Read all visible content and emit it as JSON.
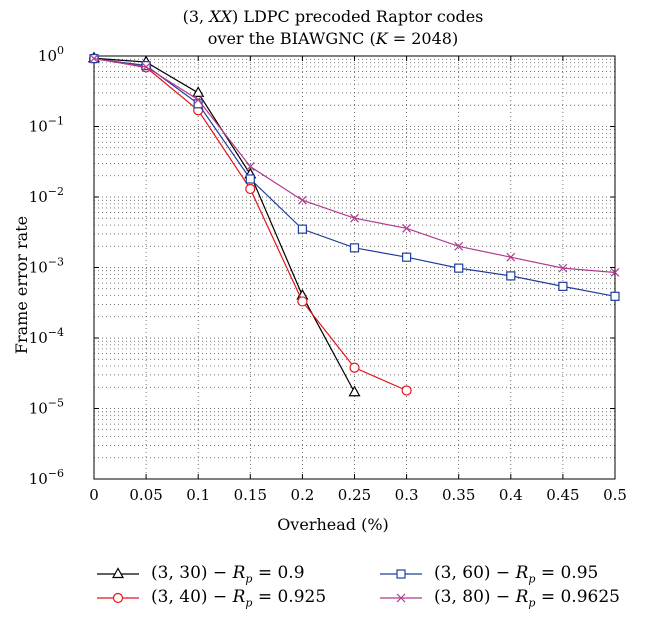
{
  "chart_data": {
    "type": "line",
    "title_line1": "(3, XX) LDPC precoded Raptor codes",
    "title_line2": "over the BIAWGNC (K = 2048)",
    "xlabel": "Overhead (%)",
    "ylabel": "Frame error rate",
    "y_scale": "log",
    "xlim": [
      0,
      0.5
    ],
    "ylim": [
      1e-06,
      1
    ],
    "grid": true,
    "legend_position": "bottom",
    "x_ticks": [
      "0",
      "0.05",
      "0.1",
      "0.15",
      "0.2",
      "0.25",
      "0.3",
      "0.35",
      "0.4",
      "0.45",
      "0.5"
    ],
    "y_ticks": [
      {
        "base": "10",
        "exp": "0"
      },
      {
        "base": "10",
        "exp": "−1"
      },
      {
        "base": "10",
        "exp": "−2"
      },
      {
        "base": "10",
        "exp": "−3"
      },
      {
        "base": "10",
        "exp": "−4"
      },
      {
        "base": "10",
        "exp": "−5"
      },
      {
        "base": "10",
        "exp": "−6"
      }
    ],
    "series": [
      {
        "name": "(3, 30) − Rp = 0.9",
        "code": "(3, 30)",
        "rp": "0.9",
        "color": "#000000",
        "marker": "triangle",
        "x": [
          0,
          0.05,
          0.1,
          0.15,
          0.2,
          0.25
        ],
        "y": [
          0.93,
          0.82,
          0.3,
          0.021,
          0.0004,
          1.7e-05
        ]
      },
      {
        "name": "(3, 40) − Rp = 0.925",
        "code": "(3, 40)",
        "rp": "0.925",
        "color": "#e8141c",
        "marker": "circle",
        "x": [
          0,
          0.05,
          0.1,
          0.15,
          0.2,
          0.25,
          0.3
        ],
        "y": [
          0.92,
          0.69,
          0.17,
          0.013,
          0.00033,
          3.8e-05,
          1.8e-05
        ]
      },
      {
        "name": "(3, 60) − Rp = 0.95",
        "code": "(3, 60)",
        "rp": "0.95",
        "color": "#1f3f9e",
        "marker": "square",
        "x": [
          0,
          0.05,
          0.1,
          0.15,
          0.2,
          0.25,
          0.3,
          0.35,
          0.4,
          0.45,
          0.5
        ],
        "y": [
          0.92,
          0.73,
          0.21,
          0.018,
          0.0035,
          0.0019,
          0.0014,
          0.00098,
          0.00076,
          0.00054,
          0.00039
        ]
      },
      {
        "name": "(3, 80) − Rp = 0.9625",
        "code": "(3, 80)",
        "rp": "0.9625",
        "color": "#b03a8e",
        "marker": "x",
        "x": [
          0,
          0.05,
          0.1,
          0.15,
          0.2,
          0.25,
          0.3,
          0.35,
          0.4,
          0.45,
          0.5
        ],
        "y": [
          0.92,
          0.7,
          0.24,
          0.027,
          0.009,
          0.005,
          0.0036,
          0.002,
          0.0014,
          0.00098,
          0.00085
        ]
      }
    ]
  }
}
